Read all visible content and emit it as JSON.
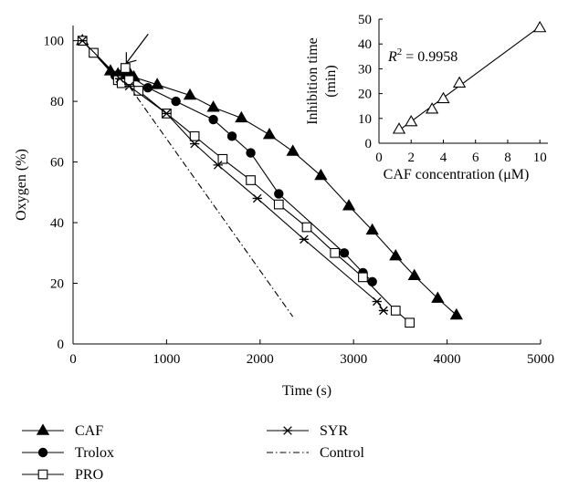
{
  "chart_data": [
    {
      "type": "line",
      "xlabel": "Time (s)",
      "ylabel": "Oxygen (%)",
      "xlim": [
        0,
        5000
      ],
      "ylim": [
        0,
        105
      ],
      "xticks": [
        0,
        1000,
        2000,
        3000,
        4000,
        5000
      ],
      "yticks": [
        0,
        20,
        40,
        60,
        80,
        100
      ],
      "xtick_labels": [
        "0",
        "1000",
        "2000",
        "3000",
        "4000",
        "5000"
      ],
      "ytick_labels": [
        "0",
        "20",
        "40",
        "60",
        "80",
        "100"
      ],
      "grid": false,
      "legend_position": "bottom",
      "series": [
        {
          "name": "CAF",
          "marker": "filled-triangle",
          "x": [
            100,
            400,
            480,
            540,
            600,
            650,
            900,
            1250,
            1500,
            1800,
            2100,
            2350,
            2650,
            2950,
            3200,
            3450,
            3650,
            3900,
            4100
          ],
          "y": [
            100,
            90,
            89,
            90,
            89.5,
            88,
            85.5,
            82,
            78,
            74.5,
            69,
            63.5,
            55.5,
            45.5,
            37.5,
            29,
            22.5,
            15,
            9.5
          ]
        },
        {
          "name": "Trolox",
          "marker": "filled-circle",
          "x": [
            100,
            450,
            520,
            560,
            600,
            800,
            1100,
            1500,
            1700,
            1900,
            2200,
            2900,
            3100,
            3200
          ],
          "y": [
            100,
            88.5,
            87.5,
            88,
            88.5,
            84.5,
            80,
            74,
            68.5,
            63,
            49.5,
            30,
            23.5,
            20.5
          ]
        },
        {
          "name": "PRO",
          "marker": "open-square",
          "x": [
            100,
            220,
            480,
            520,
            560,
            600,
            700,
            1000,
            1300,
            1600,
            1900,
            2200,
            2500,
            2800,
            3100,
            3450,
            3600
          ],
          "y": [
            100,
            96,
            87,
            86,
            91,
            87,
            83.5,
            76,
            68.5,
            61,
            54,
            46,
            38.5,
            30,
            22,
            11,
            7
          ]
        },
        {
          "name": "SYR",
          "marker": "asterisk",
          "x": [
            100,
            500,
            600,
            1000,
            1300,
            1550,
            1970,
            2470,
            3250,
            3320
          ],
          "y": [
            100,
            87.5,
            85,
            76,
            66,
            59,
            48,
            34.5,
            14,
            11
          ]
        },
        {
          "name": "Control",
          "marker": "none",
          "line_style": "dash-dot",
          "x": [
            600,
            2350
          ],
          "y": [
            85,
            9
          ]
        }
      ],
      "arrow_annotation": {
        "x": 550,
        "y": 92
      }
    },
    {
      "type": "scatter",
      "inset": true,
      "xlabel": "CAF concentration (μM)",
      "ylabel_lines": [
        "Inhibition time",
        "(min)"
      ],
      "xlim": [
        0,
        10.5
      ],
      "ylim": [
        0,
        50
      ],
      "xticks": [
        0,
        2,
        4,
        6,
        8,
        10
      ],
      "yticks": [
        0,
        10,
        20,
        30,
        40,
        50
      ],
      "xtick_labels": [
        "0",
        "2",
        "4",
        "6",
        "8",
        "10"
      ],
      "ytick_labels": [
        "0",
        "10",
        "20",
        "30",
        "40",
        "50"
      ],
      "r2_label": "R",
      "r2_superscript": "2",
      "r2_value_text": " = 0.9958",
      "marker": "open-triangle",
      "x": [
        1.25,
        2.0,
        3.3,
        4.0,
        5.0,
        10.0
      ],
      "y": [
        5.6,
        8.6,
        13.7,
        17.9,
        24.2,
        46.5
      ],
      "fit_line": {
        "x": [
          1.25,
          10.0
        ],
        "y": [
          5.2,
          47.0
        ]
      }
    }
  ]
}
